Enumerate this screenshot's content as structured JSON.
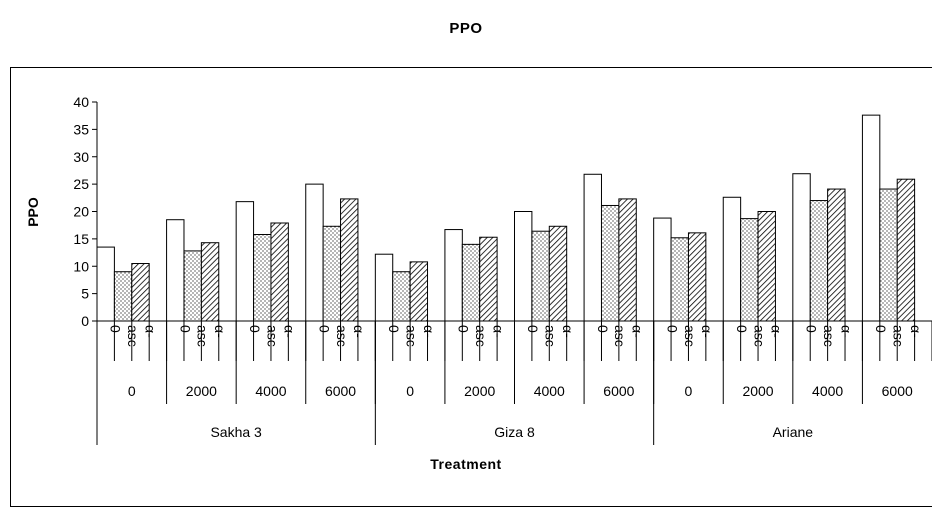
{
  "chart_data": {
    "type": "bar",
    "title": "PPO",
    "ylabel": "PPO",
    "xlabel": "Treatment",
    "ylim": [
      0,
      40
    ],
    "yticks": [
      0,
      5,
      10,
      15,
      20,
      25,
      30,
      35,
      40
    ],
    "grid": false,
    "legend": "none",
    "varieties": [
      "Sakha 3",
      "Giza 8",
      "Ariane"
    ],
    "doses": [
      "0",
      "2000",
      "4000",
      "6000"
    ],
    "treatments": [
      "0",
      "asc",
      "α-"
    ],
    "groups": [
      {
        "variety": "Sakha 3",
        "dose": "0",
        "values": [
          13.5,
          9.0,
          10.5
        ]
      },
      {
        "variety": "Sakha 3",
        "dose": "2000",
        "values": [
          18.5,
          12.8,
          14.3
        ]
      },
      {
        "variety": "Sakha 3",
        "dose": "4000",
        "values": [
          21.8,
          15.8,
          17.9
        ]
      },
      {
        "variety": "Sakha 3",
        "dose": "6000",
        "values": [
          25.0,
          17.3,
          22.3
        ]
      },
      {
        "variety": "Giza 8",
        "dose": "0",
        "values": [
          12.2,
          9.0,
          10.8
        ]
      },
      {
        "variety": "Giza 8",
        "dose": "2000",
        "values": [
          16.7,
          14.0,
          15.3
        ]
      },
      {
        "variety": "Giza 8",
        "dose": "4000",
        "values": [
          20.0,
          16.4,
          17.3
        ]
      },
      {
        "variety": "Giza 8",
        "dose": "6000",
        "values": [
          26.8,
          21.1,
          22.3
        ]
      },
      {
        "variety": "Ariane",
        "dose": "0",
        "values": [
          18.8,
          15.2,
          16.1
        ]
      },
      {
        "variety": "Ariane",
        "dose": "2000",
        "values": [
          22.6,
          18.7,
          20.0
        ]
      },
      {
        "variety": "Ariane",
        "dose": "4000",
        "values": [
          26.9,
          22.0,
          24.1
        ]
      },
      {
        "variety": "Ariane",
        "dose": "6000",
        "values": [
          37.6,
          24.1,
          25.9
        ]
      }
    ],
    "bar_fills": [
      "white",
      "dotted",
      "diagonal-hatch"
    ]
  }
}
